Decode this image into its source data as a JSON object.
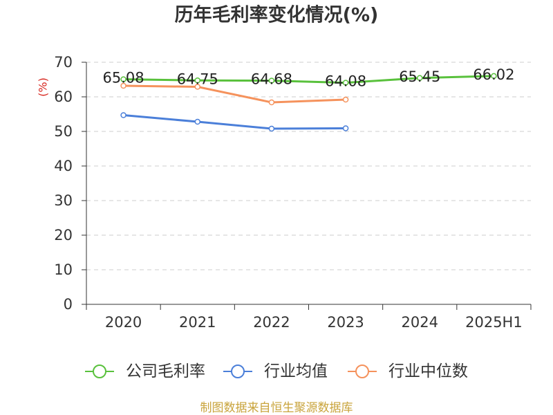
{
  "chart_data": {
    "type": "line",
    "title": "历年毛利率变化情况(%)",
    "xlabel": "",
    "ylabel": "(%)",
    "categories": [
      "2020",
      "2021",
      "2022",
      "2023",
      "2024",
      "2025H1"
    ],
    "ylim": [
      0,
      70
    ],
    "yticks": [
      0,
      10,
      20,
      30,
      40,
      50,
      60,
      70
    ],
    "grid": true,
    "legend": "bottom",
    "series": [
      {
        "name": "公司毛利率",
        "color": "#59c13c",
        "values": [
          65.08,
          64.75,
          64.68,
          64.08,
          65.45,
          66.02
        ],
        "show_labels": true
      },
      {
        "name": "行业均值",
        "color": "#4b7fd9",
        "values": [
          54.7,
          52.8,
          50.8,
          50.9,
          null,
          null
        ],
        "show_labels": false
      },
      {
        "name": "行业中位数",
        "color": "#f5925c",
        "values": [
          63.2,
          62.9,
          58.4,
          59.2,
          null,
          null
        ],
        "show_labels": false
      }
    ]
  },
  "colors": {
    "title": "#333333",
    "ylabel": "#d7261e",
    "axis": "#333333",
    "grid": "#cccccc",
    "footer": "#c9a43c"
  },
  "footer": {
    "source": "制图数据来自恒生聚源数据库"
  }
}
